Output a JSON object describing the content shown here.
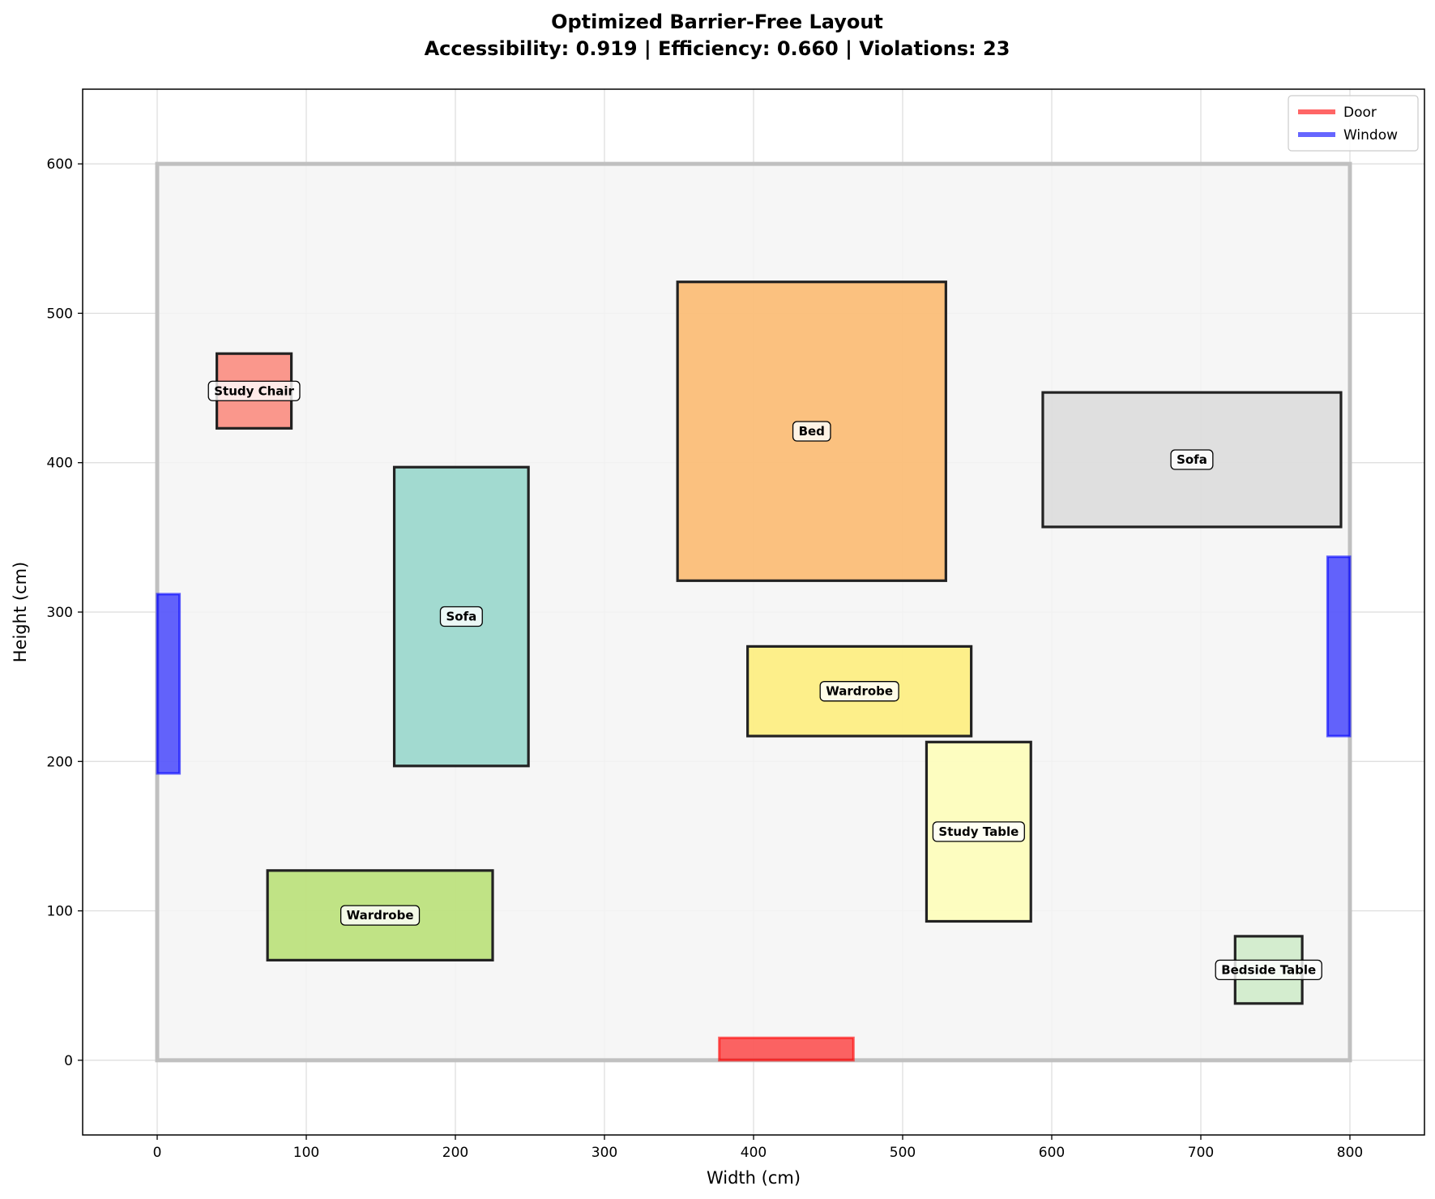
{
  "chart_data": {
    "type": "floor-plan",
    "title_line1": "Optimized Barrier-Free Layout",
    "title_line2": "Accessibility: 0.919 | Efficiency: 0.660 | Violations: 23",
    "xlabel": "Width (cm)",
    "ylabel": "Height (cm)",
    "xlim": [
      -50,
      850
    ],
    "ylim": [
      -50,
      650
    ],
    "xticks": [
      0,
      100,
      200,
      300,
      400,
      500,
      600,
      700,
      800
    ],
    "yticks": [
      0,
      100,
      200,
      300,
      400,
      500,
      600
    ],
    "grid": true,
    "room": {
      "x": 0,
      "y": 0,
      "width": 800,
      "height": 600,
      "fill": "#f4f4f4",
      "edge": "#c0c0c0"
    },
    "furniture": [
      {
        "name": "Study Chair",
        "x": 40,
        "y": 423,
        "width": 50,
        "height": 50,
        "color": "#fb8072"
      },
      {
        "name": "Sofa",
        "x": 159,
        "y": 197,
        "width": 90,
        "height": 200,
        "color": "#8dd3c7"
      },
      {
        "name": "Bed",
        "x": 349,
        "y": 321,
        "width": 180,
        "height": 200,
        "color": "#fdb462"
      },
      {
        "name": "Sofa",
        "x": 594,
        "y": 357,
        "width": 200,
        "height": 90,
        "color": "#d9d9d9"
      },
      {
        "name": "Wardrobe",
        "x": 396,
        "y": 217,
        "width": 150,
        "height": 60,
        "color": "#ffed6f"
      },
      {
        "name": "Study Table",
        "x": 516,
        "y": 93,
        "width": 70,
        "height": 120,
        "color": "#ffffb3"
      },
      {
        "name": "Wardrobe",
        "x": 74,
        "y": 67,
        "width": 151,
        "height": 60,
        "color": "#b3de69"
      },
      {
        "name": "Bedside Table",
        "x": 723,
        "y": 38,
        "width": 45,
        "height": 45,
        "color": "#ccebc5"
      }
    ],
    "openings": [
      {
        "type": "Door",
        "x": 377,
        "y": 0,
        "width": 90,
        "height": 15,
        "color": "#ff0000"
      },
      {
        "type": "Window",
        "x": 0,
        "y": 192,
        "width": 15,
        "height": 120,
        "color": "#0000ff"
      },
      {
        "type": "Window",
        "x": 785,
        "y": 217,
        "width": 15,
        "height": 120,
        "color": "#0000ff"
      }
    ],
    "legend": {
      "position": "top-right",
      "entries": [
        {
          "label": "Door",
          "color": "#ff0000"
        },
        {
          "label": "Window",
          "color": "#0000ff"
        }
      ]
    }
  }
}
